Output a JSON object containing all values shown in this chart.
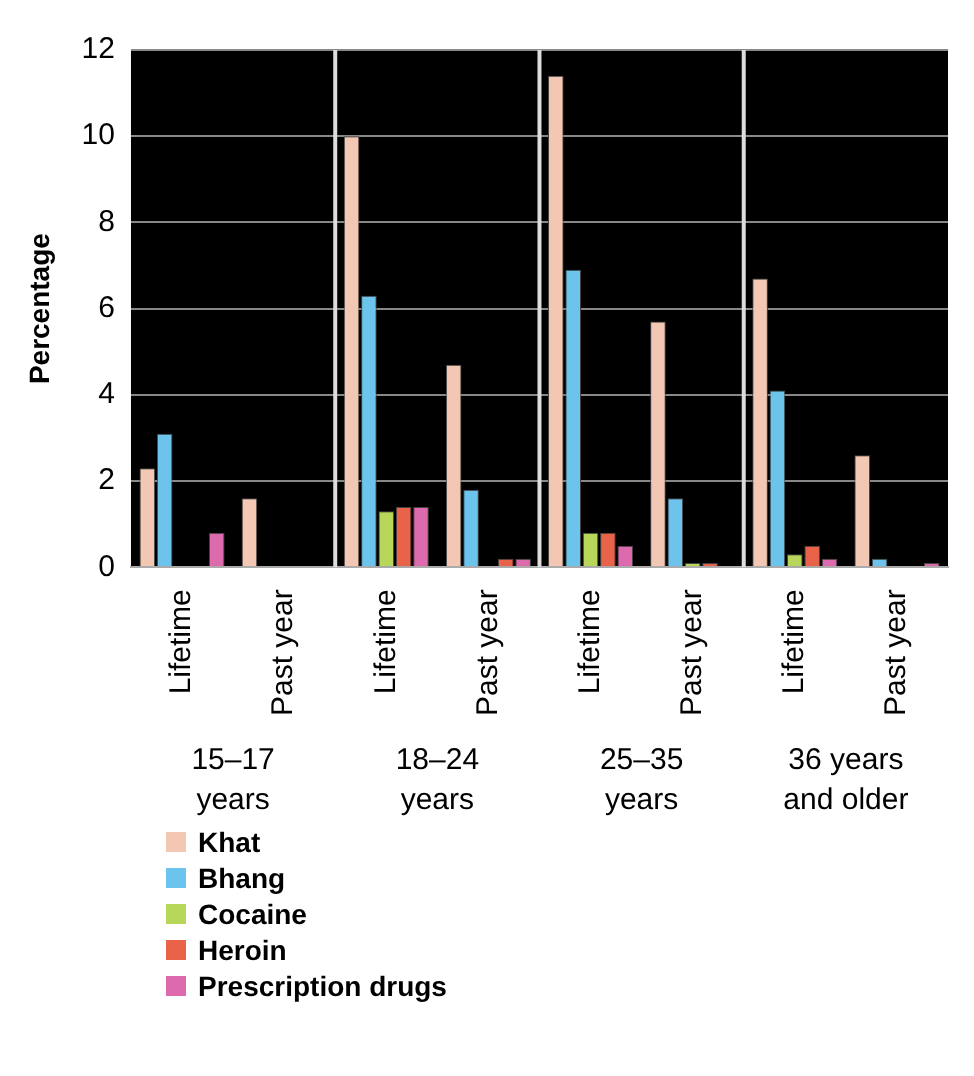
{
  "chart_data": {
    "type": "bar",
    "ylabel": "Percentage",
    "categories": [
      "Lifetime",
      "Past year",
      "Lifetime",
      "Past year",
      "Lifetime",
      "Past year",
      "Lifetime",
      "Past year"
    ],
    "annotations": [
      "15–17 years",
      "18–24 years",
      "25–35 years",
      "36 years and older"
    ],
    "series": [
      {
        "name": "Khat",
        "color": "#f2c8b4",
        "values": [
          2.3,
          1.6,
          10,
          4.7,
          11.4,
          5.7,
          6.7,
          2.6
        ]
      },
      {
        "name": "Bhang",
        "color": "#6cc4ec",
        "values": [
          3.1,
          0,
          6.3,
          1.8,
          6.9,
          1.6,
          4.1,
          0.2
        ]
      },
      {
        "name": "Cocaine",
        "color": "#b8d65a",
        "values": [
          0,
          0,
          1.3,
          0,
          0.8,
          0.1,
          0.3,
          0
        ]
      },
      {
        "name": "Heroin",
        "color": "#e8634a",
        "values": [
          0,
          0,
          1.4,
          0.2,
          0.8,
          0.1,
          0.5,
          0
        ]
      },
      {
        "name": "Prescription drugs",
        "color": "#dc6aac",
        "values": [
          0.8,
          0,
          1.4,
          0.2,
          0.5,
          0,
          0.2,
          0.1
        ]
      }
    ],
    "ylim": [
      0,
      12
    ],
    "yticks": [
      0,
      2,
      4,
      6,
      8,
      10,
      12
    ],
    "grid": "y",
    "legend": "bottom"
  }
}
